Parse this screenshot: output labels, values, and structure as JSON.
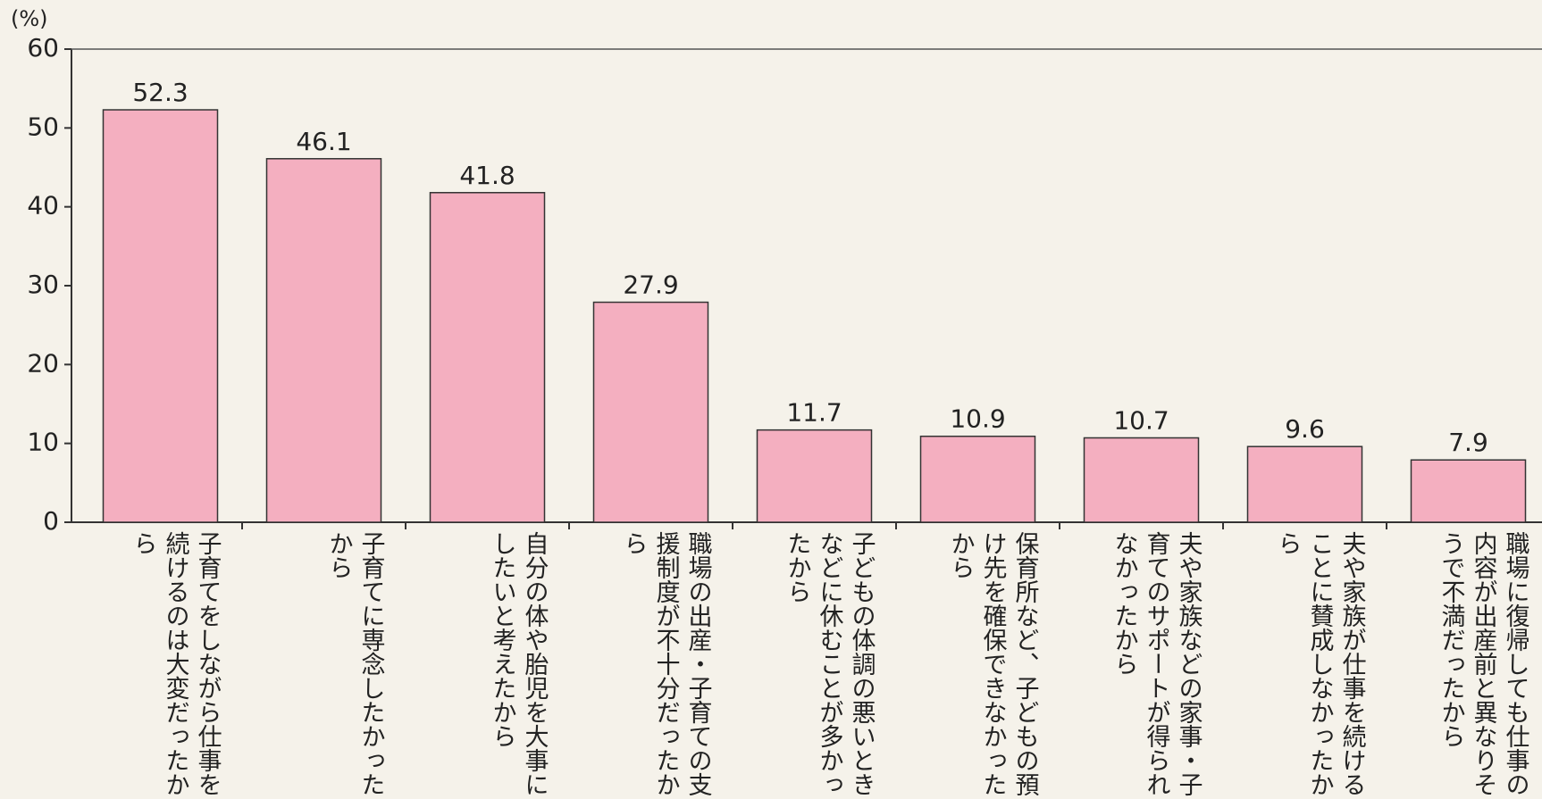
{
  "chart_data": {
    "type": "bar",
    "y_label": "(%)",
    "categories": [
      "子育てをしながら仕事を続けるのは大変だったから",
      "子育てに専念したかったから",
      "自分の体や胎児を大事にしたいと考えたから",
      "職場の出産・子育ての支援制度が不十分だったから",
      "子どもの体調の悪いときなどに休むことが多かったから",
      "保育所など、子どもの預け先を確保できなかったから",
      "夫や家族などの家事・子育てのサポートが得られなかったから",
      "夫や家族が仕事を続けることに賛成しなかったから",
      "職場に復帰しても仕事の内容が出産前と異なりそうで不満だったから"
    ],
    "values": [
      52.3,
      46.1,
      41.8,
      27.9,
      11.7,
      10.9,
      10.7,
      9.6,
      7.9
    ],
    "color": "#f4afc0",
    "ylim": [
      0,
      60
    ],
    "yticks": [
      0,
      10,
      20,
      30,
      40,
      50,
      60
    ],
    "grid": false
  }
}
